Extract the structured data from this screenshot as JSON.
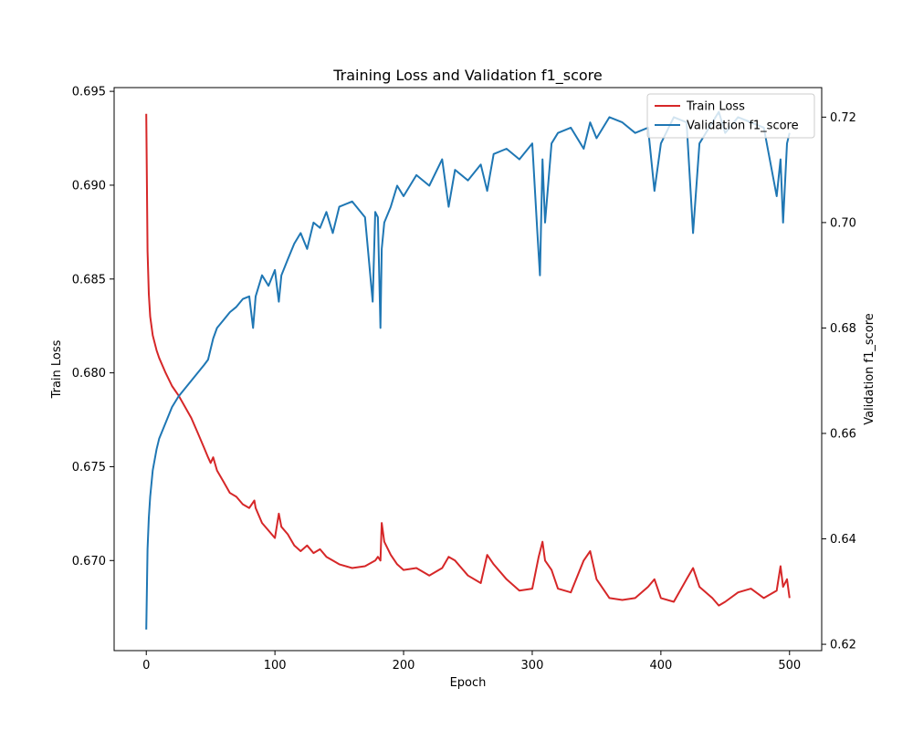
{
  "chart_data": {
    "type": "line",
    "title": "Training Loss and Validation f1_score",
    "xlabel": "Epoch",
    "ylabel_left": "Train Loss",
    "ylabel_right": "Validation f1_score",
    "xlim": [
      -25,
      525
    ],
    "ylim_left": [
      0.6652,
      0.6952
    ],
    "ylim_right": [
      0.6188,
      0.7256
    ],
    "x_ticks": [
      0,
      100,
      200,
      300,
      400,
      500
    ],
    "y_ticks_left": [
      0.67,
      0.675,
      0.68,
      0.685,
      0.69,
      0.695
    ],
    "y_ticks_right": [
      0.62,
      0.64,
      0.66,
      0.68,
      0.7,
      0.72
    ],
    "grid": false,
    "legend_position": "top-right",
    "series": [
      {
        "name": "Train Loss",
        "axis": "left",
        "color": "#d62728",
        "x": [
          0,
          1,
          2,
          3,
          5,
          8,
          10,
          15,
          20,
          25,
          30,
          35,
          40,
          45,
          48,
          50,
          52,
          55,
          60,
          65,
          70,
          75,
          80,
          84,
          85,
          90,
          95,
          100,
          103,
          105,
          110,
          115,
          120,
          125,
          130,
          135,
          140,
          145,
          150,
          160,
          170,
          178,
          180,
          182,
          183,
          185,
          190,
          195,
          200,
          210,
          220,
          230,
          235,
          240,
          250,
          260,
          265,
          270,
          280,
          290,
          300,
          305,
          308,
          310,
          315,
          320,
          330,
          340,
          345,
          350,
          360,
          370,
          380,
          390,
          395,
          400,
          410,
          420,
          425,
          430,
          440,
          445,
          450,
          460,
          470,
          480,
          490,
          493,
          495,
          498,
          500
        ],
        "y": [
          0.6938,
          0.6865,
          0.6842,
          0.683,
          0.682,
          0.6812,
          0.6808,
          0.68,
          0.6793,
          0.6788,
          0.6782,
          0.6776,
          0.6768,
          0.676,
          0.6755,
          0.6752,
          0.6755,
          0.6748,
          0.6742,
          0.6736,
          0.6734,
          0.673,
          0.6728,
          0.6732,
          0.6728,
          0.672,
          0.6716,
          0.6712,
          0.6725,
          0.6718,
          0.6714,
          0.6708,
          0.6705,
          0.6708,
          0.6704,
          0.6706,
          0.6702,
          0.67,
          0.6698,
          0.6696,
          0.6697,
          0.67,
          0.6702,
          0.67,
          0.672,
          0.671,
          0.6703,
          0.6698,
          0.6695,
          0.6696,
          0.6692,
          0.6696,
          0.6702,
          0.67,
          0.6692,
          0.6688,
          0.6703,
          0.6698,
          0.669,
          0.6684,
          0.6685,
          0.6702,
          0.671,
          0.67,
          0.6695,
          0.6685,
          0.6683,
          0.67,
          0.6705,
          0.669,
          0.668,
          0.6679,
          0.668,
          0.6686,
          0.669,
          0.668,
          0.6678,
          0.669,
          0.6696,
          0.6686,
          0.668,
          0.6676,
          0.6678,
          0.6683,
          0.6685,
          0.668,
          0.6684,
          0.6697,
          0.6686,
          0.669,
          0.668
        ]
      },
      {
        "name": "Validation f1_score",
        "axis": "right",
        "color": "#1f77b4",
        "x": [
          0,
          1,
          2,
          3,
          5,
          8,
          10,
          15,
          20,
          25,
          30,
          35,
          40,
          45,
          48,
          50,
          52,
          55,
          60,
          65,
          70,
          75,
          80,
          83,
          85,
          90,
          95,
          100,
          103,
          105,
          110,
          115,
          120,
          125,
          130,
          135,
          140,
          145,
          150,
          160,
          170,
          176,
          178,
          180,
          182,
          183,
          185,
          190,
          195,
          200,
          210,
          220,
          230,
          235,
          240,
          250,
          260,
          265,
          270,
          280,
          290,
          300,
          304,
          306,
          308,
          310,
          315,
          320,
          330,
          340,
          345,
          350,
          360,
          370,
          380,
          390,
          395,
          400,
          410,
          420,
          425,
          430,
          440,
          445,
          450,
          460,
          470,
          480,
          490,
          493,
          495,
          498,
          500
        ],
        "y": [
          0.6228,
          0.638,
          0.644,
          0.648,
          0.653,
          0.657,
          0.659,
          0.662,
          0.665,
          0.667,
          0.6685,
          0.67,
          0.6715,
          0.673,
          0.674,
          0.676,
          0.678,
          0.68,
          0.6815,
          0.683,
          0.684,
          0.6855,
          0.686,
          0.68,
          0.686,
          0.69,
          0.688,
          0.691,
          0.685,
          0.69,
          0.693,
          0.696,
          0.698,
          0.695,
          0.7,
          0.699,
          0.702,
          0.698,
          0.703,
          0.704,
          0.701,
          0.685,
          0.702,
          0.701,
          0.68,
          0.695,
          0.7,
          0.703,
          0.707,
          0.705,
          0.709,
          0.707,
          0.712,
          0.703,
          0.71,
          0.708,
          0.711,
          0.706,
          0.713,
          0.714,
          0.712,
          0.715,
          0.698,
          0.69,
          0.712,
          0.7,
          0.715,
          0.717,
          0.718,
          0.714,
          0.719,
          0.716,
          0.72,
          0.719,
          0.717,
          0.718,
          0.706,
          0.715,
          0.72,
          0.719,
          0.698,
          0.715,
          0.719,
          0.721,
          0.717,
          0.72,
          0.719,
          0.718,
          0.705,
          0.712,
          0.7,
          0.715,
          0.717
        ]
      }
    ]
  }
}
